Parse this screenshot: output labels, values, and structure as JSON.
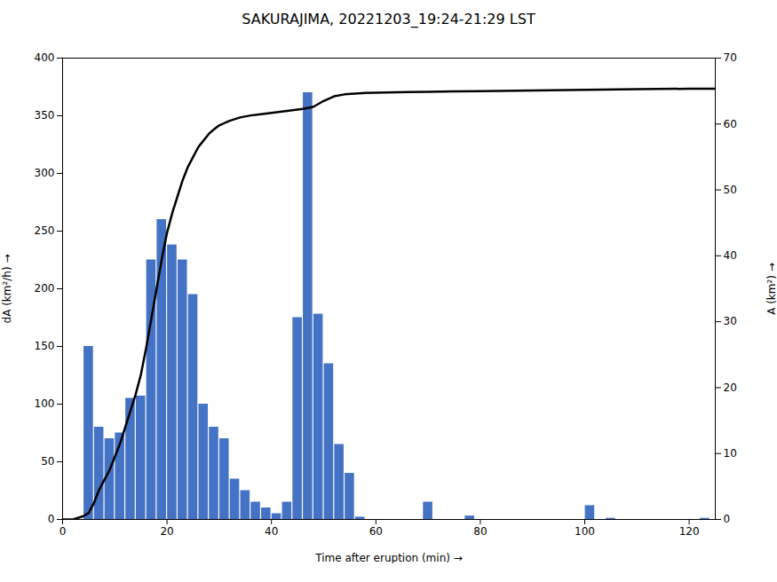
{
  "chart_data": {
    "type": "bar",
    "title": "SAKURAJIMA, 20221203_19:24-21:29 LST",
    "xlabel": "Time after eruption (min)",
    "ylabel": "dA (km²/h)",
    "y2label": "A (km²)",
    "xlim": [
      0,
      125
    ],
    "xticks": [
      0,
      20,
      40,
      60,
      80,
      100,
      120
    ],
    "ylim": [
      0,
      400
    ],
    "yticks": [
      0,
      50,
      100,
      150,
      200,
      250,
      300,
      350,
      400
    ],
    "y2lim": [
      0,
      70
    ],
    "y2ticks": [
      0,
      10,
      20,
      30,
      40,
      50,
      60,
      70
    ],
    "grid": false,
    "series": [
      {
        "type": "bar",
        "color": "#4472c4",
        "x": [
          5,
          7,
          9,
          11,
          13,
          15,
          17,
          19,
          21,
          23,
          25,
          27,
          29,
          31,
          33,
          35,
          37,
          39,
          41,
          43,
          45,
          47,
          49,
          51,
          53,
          55,
          57,
          70,
          78,
          101,
          105,
          123
        ],
        "values": [
          150,
          80,
          70,
          75,
          105,
          107,
          225,
          260,
          238,
          225,
          195,
          100,
          80,
          70,
          35,
          25,
          15,
          10,
          5,
          15,
          175,
          370,
          178,
          135,
          65,
          40,
          2,
          15,
          3,
          12,
          1,
          1
        ]
      },
      {
        "type": "line",
        "color": "#000000",
        "axis": "y2",
        "x": [
          0,
          2,
          4,
          5,
          6,
          7,
          8,
          9,
          10,
          11,
          12,
          13,
          14,
          15,
          16,
          17,
          18,
          19,
          20,
          21,
          22,
          23,
          24,
          25,
          26,
          27,
          28,
          29,
          30,
          32,
          34,
          36,
          38,
          40,
          42,
          44,
          46,
          48,
          50,
          52,
          54,
          56,
          58,
          62,
          66,
          70,
          75,
          80,
          90,
          100,
          110,
          120,
          125
        ],
        "values": [
          0,
          0,
          0.5,
          1.0,
          2.5,
          4.5,
          6.0,
          7.5,
          9.5,
          11.5,
          14.0,
          16.5,
          19.0,
          22.0,
          26.0,
          30.5,
          35.0,
          39.5,
          43.5,
          46.5,
          49.0,
          51.5,
          53.5,
          55.0,
          56.5,
          57.5,
          58.5,
          59.2,
          59.8,
          60.5,
          61.0,
          61.3,
          61.5,
          61.7,
          61.9,
          62.1,
          62.3,
          62.6,
          63.5,
          64.2,
          64.5,
          64.6,
          64.7,
          64.8,
          64.85,
          64.9,
          64.95,
          65.0,
          65.1,
          65.2,
          65.3,
          65.35,
          65.35
        ]
      }
    ]
  }
}
